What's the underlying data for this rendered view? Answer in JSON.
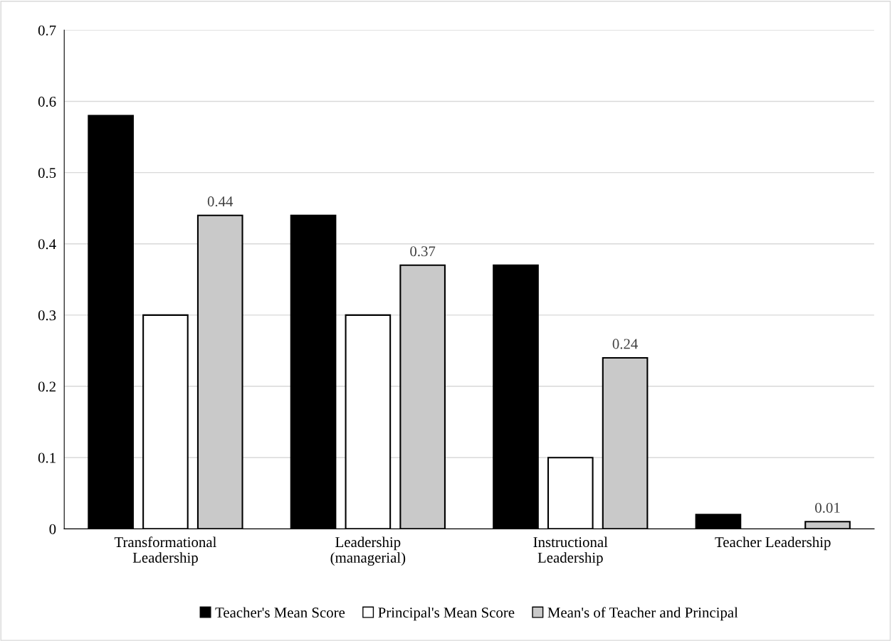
{
  "chart_data": {
    "type": "bar",
    "categories": [
      "Transformational\nLeadership",
      "Leadership\n(managerial)",
      "Instructional\nLeadership",
      "Teacher Leadership"
    ],
    "series": [
      {
        "name": "Teacher's Mean Score",
        "color": "#000000",
        "values": [
          0.58,
          0.44,
          0.37,
          0.02
        ]
      },
      {
        "name": "Principal's Mean Score",
        "color": "#ffffff",
        "values": [
          0.3,
          0.3,
          0.1,
          0
        ]
      },
      {
        "name": "Mean's of Teacher and Principal",
        "color": "#c9c9c9",
        "values": [
          0.44,
          0.37,
          0.24,
          0.01
        ],
        "value_labels": [
          "0.44",
          "0.37",
          "0.24",
          "0.01"
        ]
      }
    ],
    "ylim": [
      0,
      0.7
    ],
    "yticks": [
      0,
      0.1,
      0.2,
      0.3,
      0.4,
      0.5,
      0.6,
      0.7
    ],
    "grid": "y",
    "legend": "bottom"
  }
}
